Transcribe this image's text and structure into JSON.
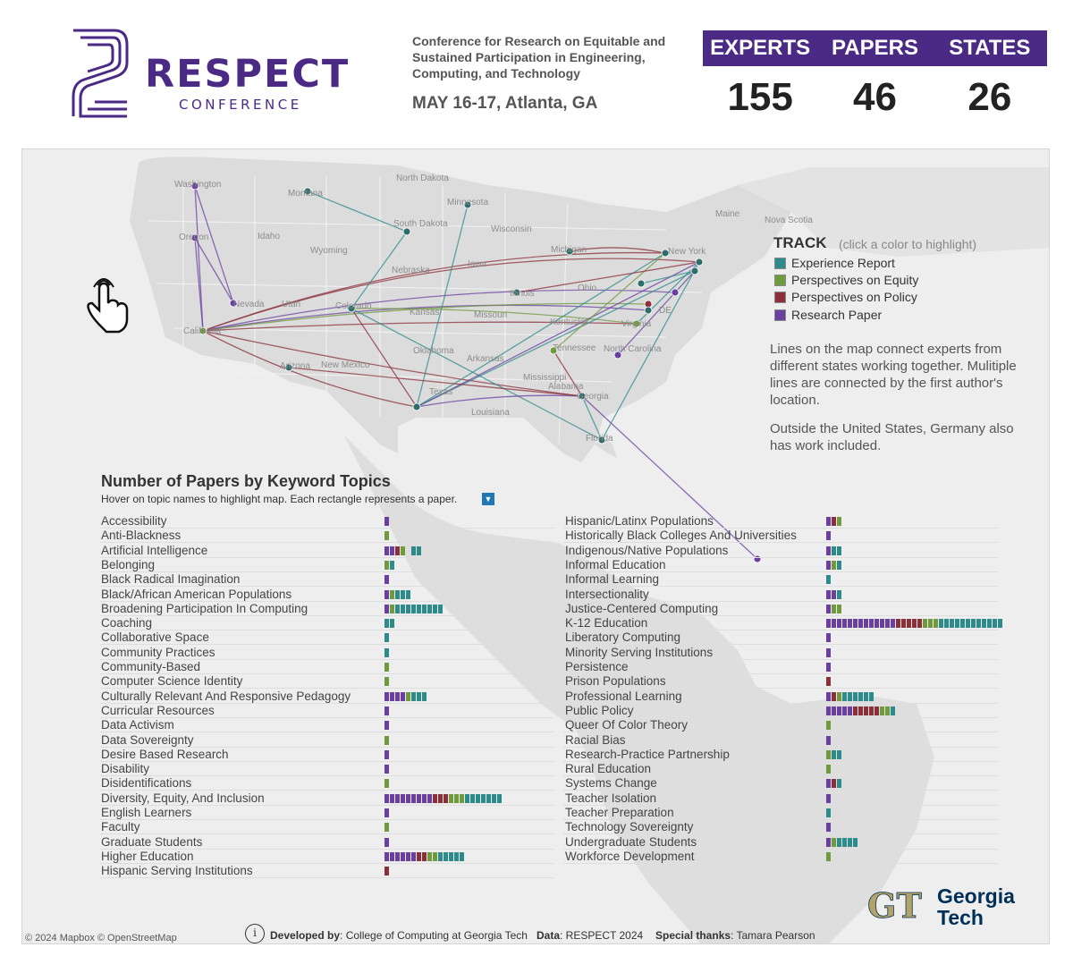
{
  "brand": {
    "logo_word": "RESPECT",
    "logo_sub": "CONFERENCE",
    "conference_name": "Conference for Research on Equitable and Sustained Participation in Engineering, Computing, and Technology",
    "date": "MAY 16-17, Atlanta, GA",
    "accent": "#4b2a86"
  },
  "stats": {
    "labels": [
      "EXPERTS",
      "PAPERS",
      "STATES"
    ],
    "values": [
      "155",
      "46",
      "26"
    ]
  },
  "map": {
    "places": [
      "Washington",
      "Oregon",
      "Idaho",
      "Montana",
      "Wyoming",
      "Nevada",
      "Utah",
      "California",
      "Arizona",
      "Colorado",
      "New Mexico",
      "North Dakota",
      "South Dakota",
      "Nebraska",
      "Kansas",
      "Oklahoma",
      "Texas",
      "Minnesota",
      "Iowa",
      "Missouri",
      "Arkansas",
      "Louisiana",
      "Wisconsin",
      "Illinois",
      "Michigan",
      "Ohio",
      "Kentucky",
      "Tennessee",
      "Mississippi",
      "Alabama",
      "Georgia",
      "Florida",
      "North Carolina",
      "Virginia",
      "New York",
      "Maine",
      "Nova Scotia",
      "DE"
    ],
    "icon": "hand-pointer-icon"
  },
  "tracks": {
    "title": "TRACK",
    "hint": "(click a color to highlight)",
    "items": [
      {
        "label": "Experience Report",
        "color": "#2e8b8b"
      },
      {
        "label": "Perspectives on Equity",
        "color": "#6f9a3e"
      },
      {
        "label": "Perspectives on Policy",
        "color": "#8b2f3a"
      },
      {
        "label": "Research Paper",
        "color": "#6a3fa0"
      }
    ]
  },
  "notes": {
    "lines": "Lines on the map connect experts from different states working together. Mulitiple lines are connected by the first author's location.",
    "outside": "Outside the United States, Germany also has work included."
  },
  "keywords": {
    "title": "Number of Papers by Keyword Topics",
    "subtitle": "Hover on topic names to highlight map. Each rectangle represents a paper.",
    "left": [
      {
        "name": "Accessibility",
        "papers": "R"
      },
      {
        "name": "Anti-Blackness",
        "papers": "Q"
      },
      {
        "name": "Artificial Intelligence",
        "papers": "RRPQETT"
      },
      {
        "name": "Belonging",
        "papers": "QT"
      },
      {
        "name": "Black Radical Imagination",
        "papers": "R"
      },
      {
        "name": "Black/African American Populations",
        "papers": "RQTTT"
      },
      {
        "name": "Broadening Participation In Computing",
        "papers": "RQTTTTTTTTT"
      },
      {
        "name": "Coaching",
        "papers": "TT"
      },
      {
        "name": "Collaborative Space",
        "papers": "T"
      },
      {
        "name": "Community Practices",
        "papers": "T"
      },
      {
        "name": "Community-Based",
        "papers": "Q"
      },
      {
        "name": "Computer Science Identity",
        "papers": "Q"
      },
      {
        "name": "Culturally Relevant And Responsive Pedagogy",
        "papers": "RRRRQTTT"
      },
      {
        "name": "Curricular Resources",
        "papers": "R"
      },
      {
        "name": "Data Activism",
        "papers": "R"
      },
      {
        "name": "Data Sovereignty",
        "papers": "Q"
      },
      {
        "name": "Desire Based Research",
        "papers": "R"
      },
      {
        "name": "Disability",
        "papers": "R"
      },
      {
        "name": "Disidentifications",
        "papers": "Q"
      },
      {
        "name": "Diversity, Equity, And Inclusion",
        "papers": "RRRRRRRRRPPPQQQTTTTTTT"
      },
      {
        "name": "English Learners",
        "papers": "R"
      },
      {
        "name": "Faculty",
        "papers": "Q"
      },
      {
        "name": "Graduate Students",
        "papers": "R"
      },
      {
        "name": "Higher Education",
        "papers": "RRRRRRPPQQTTTTT"
      },
      {
        "name": "Hispanic Serving Institutions",
        "papers": "P"
      }
    ],
    "right": [
      {
        "name": "Hispanic/Latinx Populations",
        "papers": "RPQ"
      },
      {
        "name": "Historically Black Colleges And Universities",
        "papers": "R"
      },
      {
        "name": "Indigenous/Native Populations",
        "papers": "RTT"
      },
      {
        "name": "Informal Education",
        "papers": "RQT"
      },
      {
        "name": "Informal Learning",
        "papers": "T"
      },
      {
        "name": "Intersectionality",
        "papers": "RRT"
      },
      {
        "name": "Justice-Centered Computing",
        "papers": "RQQ"
      },
      {
        "name": "K-12 Education",
        "papers": "RRRRRRRRRRRRRPPPPPQQQTTTTTTTTTTTT"
      },
      {
        "name": "Liberatory Computing",
        "papers": "R"
      },
      {
        "name": "Minority Serving Institutions",
        "papers": "R"
      },
      {
        "name": "Persistence",
        "papers": "R"
      },
      {
        "name": "Prison Populations",
        "papers": "P"
      },
      {
        "name": "Professional Learning",
        "papers": "RPQTTTTTT"
      },
      {
        "name": "Public Policy",
        "papers": "RRRRRPPPPPQQT"
      },
      {
        "name": "Queer Of Color Theory",
        "papers": "Q"
      },
      {
        "name": "Racial Bias",
        "papers": "R"
      },
      {
        "name": "Research-Practice Partnership",
        "papers": "QTT"
      },
      {
        "name": "Rural Education",
        "papers": "Q"
      },
      {
        "name": "Systems Change",
        "papers": "RPT"
      },
      {
        "name": "Teacher Isolation",
        "papers": "R"
      },
      {
        "name": "Teacher Preparation",
        "papers": "T"
      },
      {
        "name": "Technology Sovereignty",
        "papers": "R"
      },
      {
        "name": "Undergraduate Students",
        "papers": "RQTTTT"
      },
      {
        "name": "Workforce Development",
        "papers": "Q"
      }
    ]
  },
  "footer": {
    "copyright": "© 2024 Mapbox  © OpenStreetMap",
    "info": "i",
    "developed_label": "Developed by",
    "developed_value": ": College of Computing at Georgia Tech",
    "data_label": "Data",
    "data_value": ": RESPECT 2024",
    "thanks_label": "Special thanks",
    "thanks_value": ": Tamara Pearson",
    "gt_line1": "Georgia",
    "gt_line2": "Tech",
    "gt_mono": "GT"
  }
}
